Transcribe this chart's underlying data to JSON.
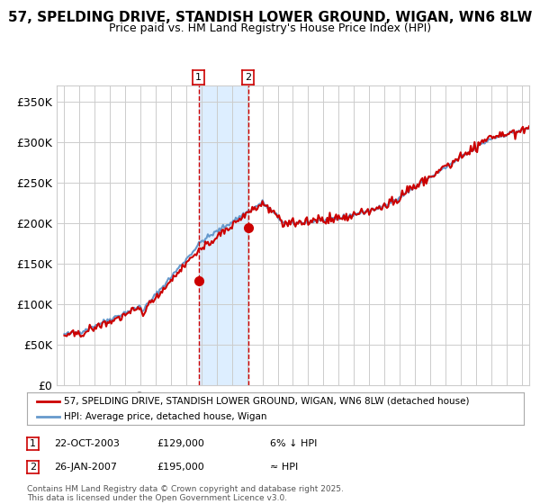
{
  "title": "57, SPELDING DRIVE, STANDISH LOWER GROUND, WIGAN, WN6 8LW",
  "subtitle": "Price paid vs. HM Land Registry's House Price Index (HPI)",
  "legend_line1": "57, SPELDING DRIVE, STANDISH LOWER GROUND, WIGAN, WN6 8LW (detached house)",
  "legend_line2": "HPI: Average price, detached house, Wigan",
  "transaction1_date": "22-OCT-2003",
  "transaction1_price": "£129,000",
  "transaction1_hpi": "6% ↓ HPI",
  "transaction1_year": 2003.81,
  "transaction1_value": 129000,
  "transaction2_date": "26-JAN-2007",
  "transaction2_price": "£195,000",
  "transaction2_hpi": "≈ HPI",
  "transaction2_year": 2007.07,
  "transaction2_value": 195000,
  "red_line_color": "#cc0000",
  "blue_line_color": "#6699cc",
  "shading_color": "#ddeeff",
  "dashed_vline_color": "#cc0000",
  "dot_color": "#cc0000",
  "background_color": "#ffffff",
  "grid_color": "#cccccc",
  "ymin": 0,
  "ymax": 370000,
  "xmin": 1994.5,
  "xmax": 2025.5,
  "footer": "Contains HM Land Registry data © Crown copyright and database right 2025.\nThis data is licensed under the Open Government Licence v3.0.",
  "yticks": [
    0,
    50000,
    100000,
    150000,
    200000,
    250000,
    300000,
    350000
  ],
  "ytick_labels": [
    "£0",
    "£50K",
    "£100K",
    "£150K",
    "£200K",
    "£250K",
    "£300K",
    "£350K"
  ],
  "xticks": [
    1995,
    1996,
    1997,
    1998,
    1999,
    2000,
    2001,
    2002,
    2003,
    2004,
    2005,
    2006,
    2007,
    2008,
    2009,
    2010,
    2011,
    2012,
    2013,
    2014,
    2015,
    2016,
    2017,
    2018,
    2019,
    2020,
    2021,
    2022,
    2023,
    2024,
    2025
  ]
}
